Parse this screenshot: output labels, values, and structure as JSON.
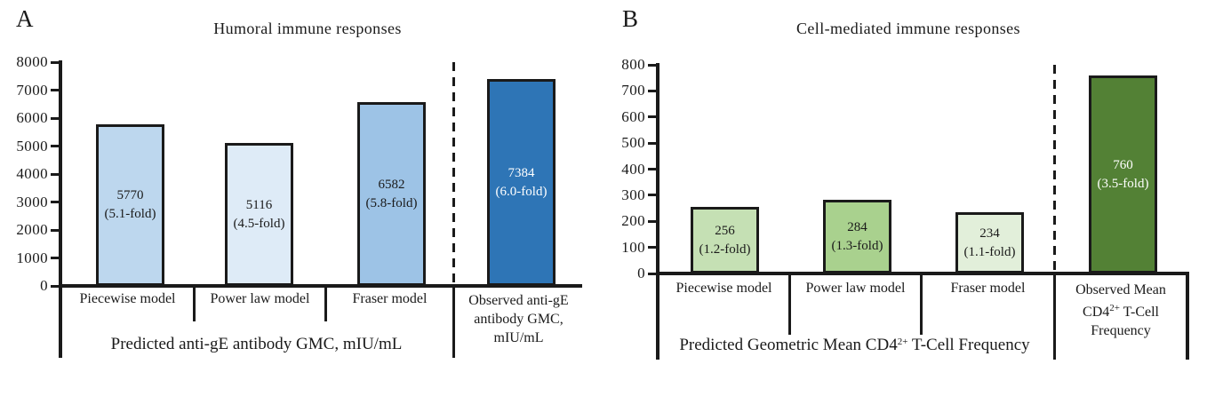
{
  "chart_data": [
    {
      "type": "bar",
      "panel_letter": "A",
      "title": "Humoral immune responses",
      "categories": [
        "Piecewise model",
        "Power law model",
        "Fraser model",
        "Observed anti-gE antibody GMC, mIU/mL"
      ],
      "values": [
        5770,
        5116,
        6582,
        7384
      ],
      "bars": [
        {
          "value_label": "5770",
          "fold_label": "(5.1-fold)",
          "fill": "#BDD7EE",
          "label_color": "#1a1a1a"
        },
        {
          "value_label": "5116",
          "fold_label": "(4.5-fold)",
          "fill": "#DEEBF7",
          "label_color": "#1a1a1a"
        },
        {
          "value_label": "6582",
          "fold_label": "(5.8-fold)",
          "fill": "#9DC3E6",
          "label_color": "#1a1a1a"
        },
        {
          "value_label": "7384",
          "fold_label": "(6.0-fold)",
          "fill": "#2E75B6",
          "label_color": "#ffffff"
        }
      ],
      "ylim": [
        0,
        8000
      ],
      "ytick_step": 1000,
      "ytick_labels": [
        "0",
        "1000",
        "2000",
        "3000",
        "4000",
        "5000",
        "6000",
        "7000",
        "8000"
      ],
      "x_axis": {
        "predicted_categories": [
          "Piecewise model",
          "Power law model",
          "Fraser model"
        ],
        "observed_label_lines": [
          "Observed anti-gE",
          "antibody GMC,",
          "mIU/mL"
        ],
        "group_label": "Predicted anti-gE antibody GMC, mIU/mL"
      },
      "grid": false,
      "legend": "none",
      "divider": "vertical dashed line between predicted models and observed bar"
    },
    {
      "type": "bar",
      "panel_letter": "B",
      "title": "Cell-mediated immune responses",
      "categories": [
        "Piecewise model",
        "Power law model",
        "Fraser model",
        "Observed Mean CD4 2+ T-Cell Frequency"
      ],
      "values": [
        256,
        284,
        234,
        760
      ],
      "bars": [
        {
          "value_label": "256",
          "fold_label": "(1.2-fold)",
          "fill": "#C5E0B4",
          "label_color": "#1a1a1a"
        },
        {
          "value_label": "284",
          "fold_label": "(1.3-fold)",
          "fill": "#A9D18E",
          "label_color": "#1a1a1a"
        },
        {
          "value_label": "234",
          "fold_label": "(1.1-fold)",
          "fill": "#E2EFDA",
          "label_color": "#1a1a1a"
        },
        {
          "value_label": "760",
          "fold_label": "(3.5-fold)",
          "fill": "#538135",
          "label_color": "#ffffff"
        }
      ],
      "ylim": [
        0,
        800
      ],
      "ytick_step": 100,
      "ytick_labels": [
        "0",
        "100",
        "200",
        "300",
        "400",
        "500",
        "600",
        "700",
        "800"
      ],
      "x_axis": {
        "predicted_categories": [
          "Piecewise model",
          "Power law model",
          "Fraser model"
        ],
        "observed_label_parts": {
          "line1": "Observed Mean",
          "line2_pre": "CD4",
          "line2_sup": "2+",
          "line2_post": " T-Cell",
          "line3": "Frequency"
        },
        "group_label_parts": {
          "pre": "Predicted Geometric Mean CD4",
          "sup": "2+",
          "post": " T-Cell Frequency"
        }
      },
      "grid": false,
      "legend": "none",
      "divider": "vertical dashed line between predicted models and observed bar"
    }
  ],
  "colors": {
    "axis": "#1a1a1a",
    "text": "#1a1a1a",
    "background": "#ffffff"
  }
}
